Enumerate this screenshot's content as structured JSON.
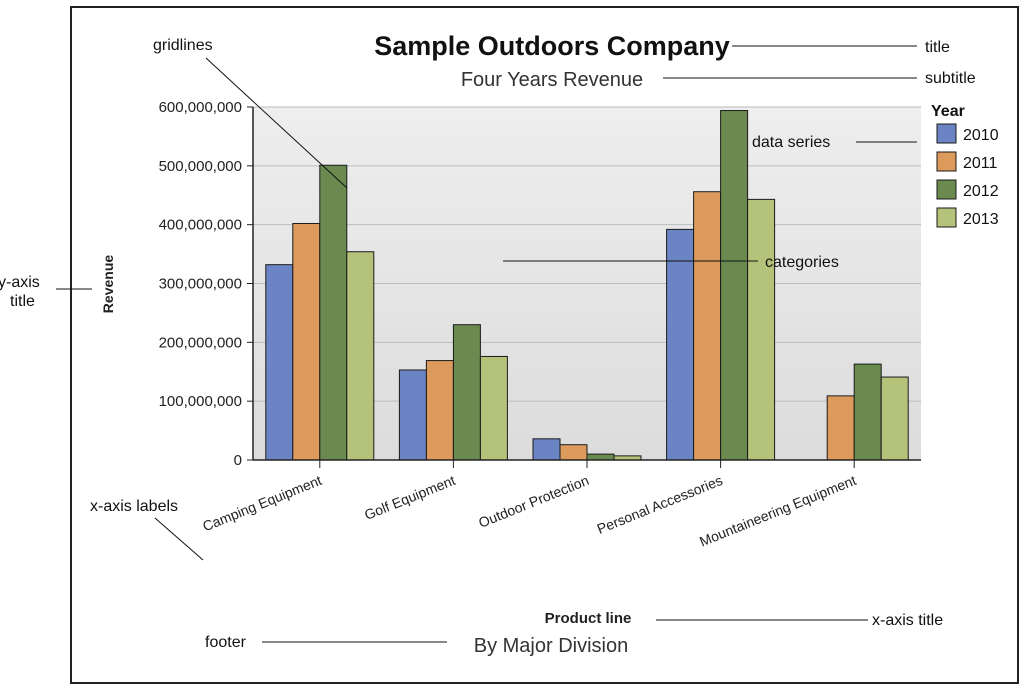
{
  "chart_data": {
    "type": "bar",
    "title": "Sample Outdoors Company",
    "subtitle": "Four Years Revenue",
    "footer": "By Major Division",
    "xlabel": "Product line",
    "ylabel": "Revenue",
    "ylim": [
      0,
      600000000
    ],
    "yticks": [
      0,
      100000000,
      200000000,
      300000000,
      400000000,
      500000000,
      600000000
    ],
    "ytick_labels": [
      "0",
      "100,000,000",
      "200,000,000",
      "300,000,000",
      "400,000,000",
      "500,000,000",
      "600,000,000"
    ],
    "grid": true,
    "legend_title": "Year",
    "legend_position": "right",
    "categories": [
      "Camping Equipment",
      "Golf Equipment",
      "Outdoor Protection",
      "Personal Accessories",
      "Mountaineering Equipment"
    ],
    "series": [
      {
        "name": "2010",
        "color": "#6b84c4",
        "values": [
          332000000,
          153000000,
          36000000,
          392000000,
          null
        ]
      },
      {
        "name": "2011",
        "color": "#dc9a5c",
        "values": [
          402000000,
          169000000,
          26000000,
          456000000,
          109000000
        ]
      },
      {
        "name": "2012",
        "color": "#6a8a4f",
        "values": [
          501000000,
          230000000,
          10000000,
          594000000,
          163000000
        ]
      },
      {
        "name": "2013",
        "color": "#b5c27a",
        "values": [
          354000000,
          176000000,
          7000000,
          443000000,
          141000000
        ]
      }
    ]
  },
  "annotations": {
    "gridlines": "gridlines",
    "title": "title",
    "subtitle": "subtitle",
    "data_series": "data series",
    "categories": "categories",
    "y_axis_title_line1": "y-axis",
    "y_axis_title_line2": "title",
    "x_axis_labels": "x-axis labels",
    "x_axis_title": "x-axis title",
    "footer": "footer"
  }
}
